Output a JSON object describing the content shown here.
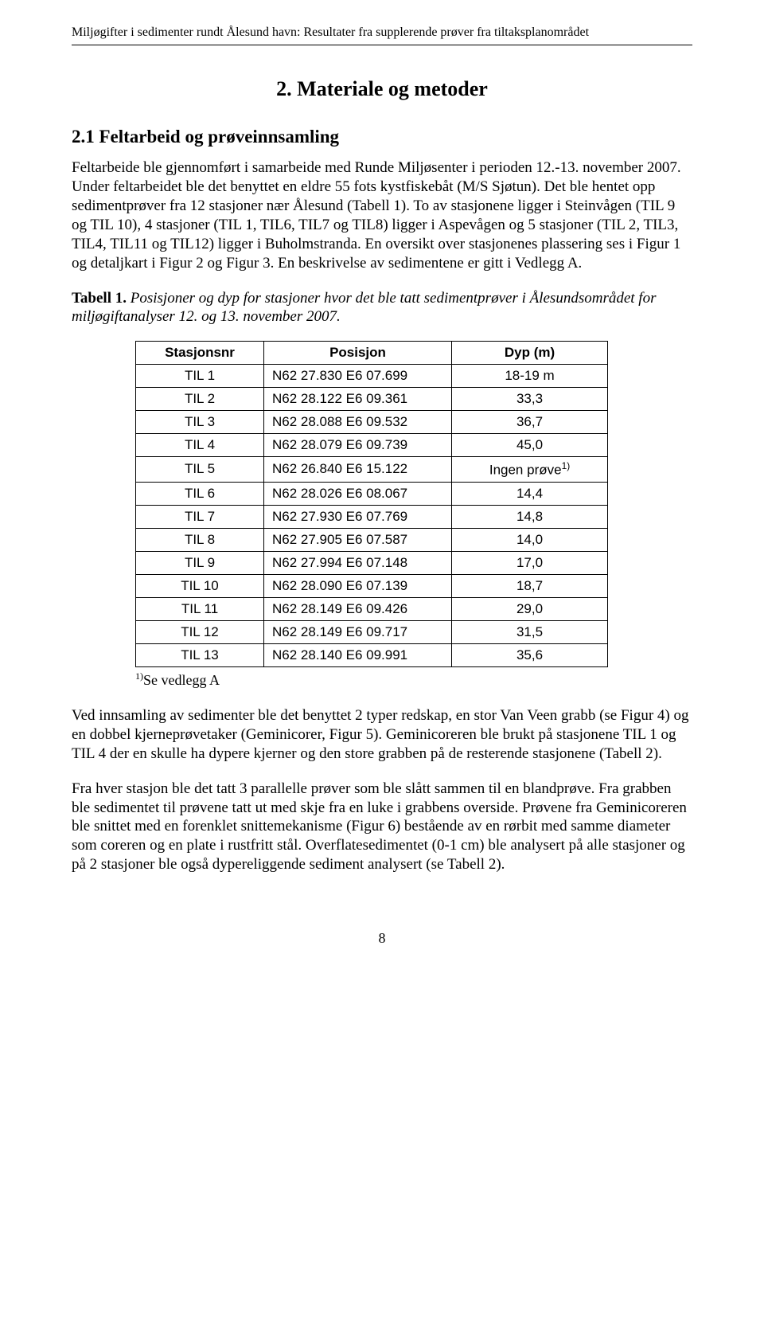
{
  "header": "Miljøgifter i sedimenter rundt Ålesund havn: Resultater fra supplerende prøver fra tiltaksplanområdet",
  "h1": "2.   Materiale og metoder",
  "h2": "2.1   Feltarbeid og prøveinnsamling",
  "para1": "Feltarbeide ble gjennomført i samarbeide med Runde Miljøsenter i perioden 12.-13. november 2007. Under feltarbeidet ble det benyttet en eldre 55 fots kystfiskebåt (M/S Sjøtun). Det ble hentet opp sedimentprøver fra 12 stasjoner nær Ålesund (Tabell 1). To av stasjonene ligger i Steinvågen (TIL 9 og TIL 10), 4 stasjoner (TIL 1, TIL6, TIL7 og TIL8) ligger i Aspevågen og 5 stasjoner (TIL 2, TIL3, TIL4, TIL11 og TIL12) ligger i Buholmstranda. En oversikt over stasjonenes plassering ses i Figur 1 og detaljkart i Figur 2 og Figur 3. En beskrivelse av sedimentene er gitt i Vedlegg A.",
  "table_caption_bold": "Tabell 1.",
  "table_caption_italic": " Posisjoner og dyp for stasjoner hvor det ble tatt sedimentprøver i Ålesundsområdet for miljøgiftanalyser 12. og 13. november 2007.",
  "table": {
    "headers": {
      "c1": "Stasjonsnr",
      "c2": "Posisjon",
      "c3": "Dyp (m)"
    },
    "rows": [
      {
        "c1": "TIL 1",
        "c2": "N62 27.830 E6 07.699",
        "c3": "18-19 m"
      },
      {
        "c1": "TIL 2",
        "c2": "N62 28.122 E6 09.361",
        "c3": "33,3"
      },
      {
        "c1": "TIL 3",
        "c2": "N62 28.088 E6 09.532",
        "c3": "36,7"
      },
      {
        "c1": "TIL 4",
        "c2": "N62 28.079 E6 09.739",
        "c3": "45,0"
      },
      {
        "c1": "TIL 5",
        "c2": "N62 26.840 E6 15.122",
        "c3": "Ingen prøve",
        "sup": "1)"
      },
      {
        "c1": "TIL 6",
        "c2": "N62 28.026 E6 08.067",
        "c3": "14,4"
      },
      {
        "c1": "TIL 7",
        "c2": "N62 27.930 E6 07.769",
        "c3": "14,8"
      },
      {
        "c1": "TIL 8",
        "c2": "N62 27.905 E6 07.587",
        "c3": "14,0"
      },
      {
        "c1": "TIL 9",
        "c2": "N62 27.994 E6 07.148",
        "c3": "17,0"
      },
      {
        "c1": "TIL 10",
        "c2": "N62 28.090 E6 07.139",
        "c3": "18,7"
      },
      {
        "c1": "TIL 11",
        "c2": "N62 28.149 E6 09.426",
        "c3": "29,0"
      },
      {
        "c1": "TIL 12",
        "c2": "N62 28.149 E6 09.717",
        "c3": "31,5"
      },
      {
        "c1": "TIL 13",
        "c2": "N62 28.140 E6 09.991",
        "c3": "35,6"
      }
    ]
  },
  "footnote_sup": "1)",
  "footnote_text": "Se vedlegg A",
  "para2": "Ved innsamling av sedimenter ble det benyttet 2 typer redskap, en stor Van Veen grabb (se Figur 4) og en dobbel kjerneprøvetaker (Geminicorer, Figur 5). Geminicoreren ble brukt på stasjonene TIL 1 og TIL 4 der en skulle ha dypere kjerner og den store grabben på de resterende stasjonene (Tabell 2).",
  "para3": "Fra hver stasjon ble det tatt 3 parallelle prøver som ble slått sammen til en blandprøve. Fra grabben ble sedimentet til prøvene tatt ut med skje fra en luke i grabbens overside. Prøvene fra Geminicoreren ble snittet med en forenklet snittemekanisme (Figur 6) bestående av en rørbit med samme diameter som coreren og en plate i rustfritt stål. Overflatesedimentet (0-1 cm) ble analysert på alle stasjoner og på 2 stasjoner ble også dypereliggende sediment analysert (se Tabell 2).",
  "page_number": "8"
}
